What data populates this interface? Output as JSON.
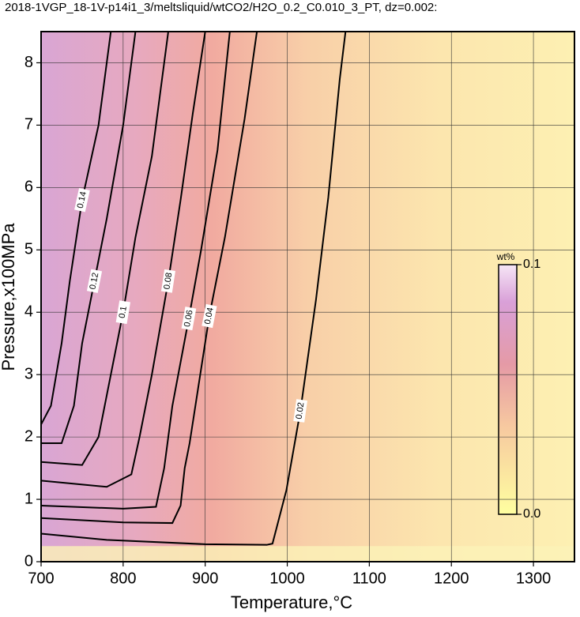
{
  "chart_data": {
    "type": "contour",
    "title": "2018-1VGP_18-1V-p14i1_3/meltsliquid/wtCO2/H2O_0.2_C0.010_3_PT, dz=0.002:",
    "x_label": "Temperature,°C",
    "y_label": "Pressure,x100MPa",
    "xlim": [
      700,
      1350
    ],
    "ylim": [
      0,
      8.5
    ],
    "xticks": [
      700,
      800,
      900,
      1000,
      1100,
      1200,
      1300
    ],
    "yticks": [
      0,
      1,
      2,
      3,
      4,
      5,
      6,
      7,
      8
    ],
    "grid": true,
    "colorbar": {
      "label": "wt%",
      "lim": [
        0,
        0.1
      ],
      "ticks": [
        {
          "value": 0,
          "label": "0.0"
        },
        0.1
      ]
    },
    "contours": [
      {
        "level": 0.02,
        "x": [
          700,
          780,
          900,
          975,
          982,
          999,
          1016,
          1035,
          1050,
          1064,
          1071
        ],
        "y": [
          0.45,
          0.35,
          0.28,
          0.27,
          0.29,
          1.15,
          2.42,
          4.2,
          5.84,
          7.74,
          8.5
        ]
      },
      {
        "level": 0.04,
        "x": [
          700,
          800,
          860,
          870,
          875,
          881,
          905,
          924,
          948,
          963
        ],
        "y": [
          0.7,
          0.63,
          0.62,
          0.9,
          1.5,
          1.9,
          3.94,
          5.2,
          7.1,
          8.5
        ]
      },
      {
        "level": 0.06,
        "x": [
          700,
          800,
          840,
          850,
          860,
          880,
          895,
          915,
          930
        ],
        "y": [
          0.9,
          0.85,
          0.88,
          1.5,
          2.5,
          3.9,
          5.0,
          6.6,
          8.5
        ]
      },
      {
        "level": 0.08,
        "x": [
          700,
          780,
          810,
          820,
          835,
          855,
          870,
          885,
          900
        ],
        "y": [
          1.3,
          1.2,
          1.4,
          2.0,
          3.0,
          4.5,
          5.8,
          7.2,
          8.5
        ]
      },
      {
        "level": 0.1,
        "x": [
          700,
          750,
          770,
          785,
          800,
          815,
          835,
          855
        ],
        "y": [
          1.6,
          1.55,
          2.0,
          3.0,
          4.0,
          5.2,
          6.5,
          8.5
        ]
      },
      {
        "level": 0.12,
        "x": [
          700,
          725,
          740,
          750,
          765,
          780,
          800,
          815
        ],
        "y": [
          1.9,
          1.9,
          2.5,
          3.5,
          4.5,
          5.5,
          7.0,
          8.5
        ]
      },
      {
        "level": 0.14,
        "x": [
          700,
          712,
          725,
          735,
          750,
          770,
          785
        ],
        "y": [
          2.2,
          2.5,
          3.5,
          4.5,
          5.8,
          7.0,
          8.5
        ]
      }
    ]
  }
}
